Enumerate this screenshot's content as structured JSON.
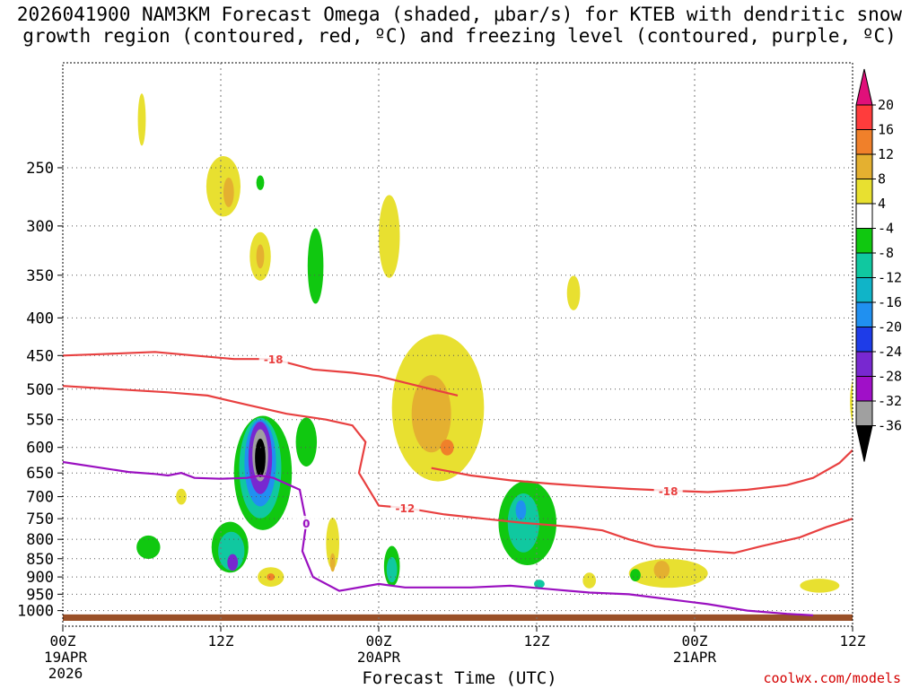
{
  "title_lines": [
    "2026041900 NAM3KM Forecast Omega (shaded, μbar/s) for KTEB with dendritic snow",
    "growth region (contoured, red, ºC) and freezing level (contoured, purple, ºC)"
  ],
  "xaxis_label": "Forecast Time (UTC)",
  "credit": "coolwx.com/models",
  "chart_data": {
    "type": "heatmap",
    "title": "2026041900 NAM3KM Forecast Omega (shaded, μbar/s) for KTEB with dendritic snow growth region (contoured, red, ºC) and freezing level (contoured, purple, ºC)",
    "xlabel": "Forecast Time (UTC)",
    "ylabel": "",
    "x_range_hours": [
      0,
      60
    ],
    "y_scale": "log-pressure (hPa), inverted",
    "y_range_hpa": [
      1050,
      180
    ],
    "x_ticks": [
      {
        "hour": 0,
        "label": "00Z",
        "sub": [
          "19APR",
          "2026"
        ]
      },
      {
        "hour": 12,
        "label": "12Z",
        "sub": []
      },
      {
        "hour": 24,
        "label": "00Z",
        "sub": [
          "20APR"
        ]
      },
      {
        "hour": 36,
        "label": "12Z",
        "sub": []
      },
      {
        "hour": 48,
        "label": "00Z",
        "sub": [
          "21APR"
        ]
      },
      {
        "hour": 60,
        "label": "12Z",
        "sub": []
      }
    ],
    "y_ticks": [
      {
        "p": 250,
        "label": "250"
      },
      {
        "p": 300,
        "label": "300"
      },
      {
        "p": 350,
        "label": "350"
      },
      {
        "p": 400,
        "label": "400"
      },
      {
        "p": 450,
        "label": "450"
      },
      {
        "p": 500,
        "label": "500"
      },
      {
        "p": 550,
        "label": "550"
      },
      {
        "p": 600,
        "label": "600"
      },
      {
        "p": 650,
        "label": "650"
      },
      {
        "p": 700,
        "label": "700"
      },
      {
        "p": 750,
        "label": "750"
      },
      {
        "p": 800,
        "label": "800"
      },
      {
        "p": 850,
        "label": "850"
      },
      {
        "p": 900,
        "label": "900"
      },
      {
        "p": 950,
        "label": "950"
      },
      {
        "p": 1000,
        "label": "1000"
      }
    ],
    "grid": true,
    "colorbar": {
      "labels": [
        "20",
        "16",
        "12",
        "8",
        "4",
        "-4",
        "-8",
        "-12",
        "-16",
        "-20",
        "-24",
        "-28",
        "-32",
        "-36"
      ],
      "colors": [
        "#ff3c3c",
        "#f0802a",
        "#e4b030",
        "#e8e030",
        "#ffffff",
        "#10c810",
        "#10c8a0",
        "#10b4c8",
        "#2090f0",
        "#1e3ce8",
        "#7828d0",
        "#a010c8",
        "#a0a0a0"
      ],
      "top_arrow_color": "#e0107a",
      "bottom_arrow_color": "#000000"
    },
    "omega_regions": [
      {
        "level": "4",
        "color": "#e8e030",
        "h": 6.0,
        "p": 215,
        "dh": 0.3,
        "dp": 35
      },
      {
        "level": "4",
        "color": "#e8e030",
        "h": 12.2,
        "p": 265,
        "dh": 1.3,
        "dp": 50
      },
      {
        "level": "8",
        "color": "#e4b030",
        "h": 12.6,
        "p": 270,
        "dh": 0.4,
        "dp": 25
      },
      {
        "level": "4",
        "color": "#e8e030",
        "h": 15.0,
        "p": 330,
        "dh": 0.8,
        "dp": 50
      },
      {
        "level": "8",
        "color": "#e4b030",
        "h": 15.0,
        "p": 330,
        "dh": 0.3,
        "dp": 25
      },
      {
        "level": "-4",
        "color": "#10c810",
        "h": 15.0,
        "p": 262,
        "dh": 0.3,
        "dp": 12
      },
      {
        "level": "-4",
        "color": "#10c810",
        "h": 19.2,
        "p": 340,
        "dh": 0.6,
        "dp": 80
      },
      {
        "level": "4",
        "color": "#e8e030",
        "h": 24.8,
        "p": 310,
        "dh": 0.8,
        "dp": 80
      },
      {
        "level": "4",
        "color": "#e8e030",
        "h": 28.5,
        "p": 530,
        "dh": 3.5,
        "dp": 240
      },
      {
        "level": "8",
        "color": "#e4b030",
        "h": 28.0,
        "p": 540,
        "dh": 1.5,
        "dp": 130
      },
      {
        "level": "12",
        "color": "#f0802a",
        "h": 29.2,
        "p": 600,
        "dh": 0.5,
        "dp": 30
      },
      {
        "level": "4",
        "color": "#e8e030",
        "h": 38.8,
        "p": 370,
        "dh": 0.5,
        "dp": 40
      },
      {
        "level": "4",
        "color": "#e8e030",
        "h": 61.0,
        "p": 520,
        "dh": 1.2,
        "dp": 130
      },
      {
        "level": "-4",
        "color": "#10c810",
        "h": 15.2,
        "p": 650,
        "dh": 2.2,
        "dp": 230
      },
      {
        "level": "-8",
        "color": "#10c8a0",
        "h": 15.0,
        "p": 640,
        "dh": 1.6,
        "dp": 200
      },
      {
        "level": "-16",
        "color": "#2090f0",
        "h": 15.0,
        "p": 630,
        "dh": 1.2,
        "dp": 170
      },
      {
        "level": "-24",
        "color": "#7828d0",
        "h": 15.0,
        "p": 620,
        "dh": 0.9,
        "dp": 140
      },
      {
        "level": "-32",
        "color": "#a0a0a0",
        "h": 15.0,
        "p": 615,
        "dh": 0.6,
        "dp": 100
      },
      {
        "level": "-36",
        "color": "#000000",
        "h": 15.0,
        "p": 620,
        "dh": 0.4,
        "dp": 75
      },
      {
        "level": "-4",
        "color": "#10c810",
        "h": 18.5,
        "p": 590,
        "dh": 0.8,
        "dp": 90
      },
      {
        "level": "-4",
        "color": "#10c810",
        "h": 12.7,
        "p": 820,
        "dh": 1.4,
        "dp": 130
      },
      {
        "level": "-8",
        "color": "#10c8a0",
        "h": 12.8,
        "p": 830,
        "dh": 1.0,
        "dp": 100
      },
      {
        "level": "-24",
        "color": "#7828d0",
        "h": 12.9,
        "p": 860,
        "dh": 0.4,
        "dp": 45
      },
      {
        "level": "-4",
        "color": "#10c810",
        "h": 6.5,
        "p": 820,
        "dh": 0.9,
        "dp": 60
      },
      {
        "level": "-4",
        "color": "#10c810",
        "h": 25.0,
        "p": 870,
        "dh": 0.6,
        "dp": 110
      },
      {
        "level": "-8",
        "color": "#10c8a0",
        "h": 25.0,
        "p": 880,
        "dh": 0.4,
        "dp": 70
      },
      {
        "level": "-4",
        "color": "#10c810",
        "h": 35.3,
        "p": 760,
        "dh": 2.2,
        "dp": 200
      },
      {
        "level": "-8",
        "color": "#10c8a0",
        "h": 35.0,
        "p": 760,
        "dh": 1.2,
        "dp": 140
      },
      {
        "level": "-16",
        "color": "#2090f0",
        "h": 34.8,
        "p": 730,
        "dh": 0.4,
        "dp": 45
      },
      {
        "level": "-8",
        "color": "#10c8a0",
        "h": 36.2,
        "p": 920,
        "dh": 0.4,
        "dp": 25
      },
      {
        "level": "4",
        "color": "#e8e030",
        "h": 15.8,
        "p": 900,
        "dh": 1.0,
        "dp": 55
      },
      {
        "level": "12",
        "color": "#f0802a",
        "h": 15.8,
        "p": 900,
        "dh": 0.3,
        "dp": 20
      },
      {
        "level": "4",
        "color": "#e8e030",
        "h": 20.5,
        "p": 810,
        "dh": 0.5,
        "dp": 130
      },
      {
        "level": "8",
        "color": "#e4b030",
        "h": 20.5,
        "p": 860,
        "dh": 0.2,
        "dp": 50
      },
      {
        "level": "4",
        "color": "#e8e030",
        "h": 40.0,
        "p": 910,
        "dh": 0.5,
        "dp": 45
      },
      {
        "level": "4",
        "color": "#e8e030",
        "h": 46.0,
        "p": 890,
        "dh": 3.0,
        "dp": 80
      },
      {
        "level": "8",
        "color": "#e4b030",
        "h": 45.5,
        "p": 880,
        "dh": 0.6,
        "dp": 50
      },
      {
        "level": "4",
        "color": "#e8e030",
        "h": 57.5,
        "p": 925,
        "dh": 1.5,
        "dp": 40
      },
      {
        "level": "-4",
        "color": "#10c810",
        "h": 43.5,
        "p": 895,
        "dh": 0.4,
        "dp": 35
      },
      {
        "level": "4",
        "color": "#e8e030",
        "h": 9.0,
        "p": 700,
        "dh": 0.4,
        "dp": 35
      }
    ],
    "series": [
      {
        "name": "-18",
        "color": "#e84040",
        "points": [
          [
            0,
            450
          ],
          [
            3,
            448
          ],
          [
            7,
            445
          ],
          [
            10,
            450
          ],
          [
            13,
            455
          ],
          [
            16,
            455
          ],
          [
            19,
            470
          ],
          [
            22,
            475
          ],
          [
            24,
            480
          ],
          [
            26,
            490
          ],
          [
            28,
            500
          ],
          [
            30,
            510
          ]
        ]
      },
      {
        "name": "-12",
        "color": "#e84040",
        "points": [
          [
            0,
            495
          ],
          [
            4,
            500
          ],
          [
            8,
            505
          ],
          [
            11,
            510
          ],
          [
            14,
            525
          ],
          [
            17,
            540
          ],
          [
            20,
            550
          ],
          [
            22,
            560
          ],
          [
            23,
            590
          ],
          [
            22.5,
            650
          ],
          [
            24,
            720
          ],
          [
            26,
            725
          ],
          [
            29,
            740
          ],
          [
            32,
            750
          ],
          [
            35,
            760
          ],
          [
            37,
            765
          ],
          [
            39,
            770
          ],
          [
            41,
            778
          ],
          [
            43,
            800
          ],
          [
            45,
            818
          ],
          [
            47,
            825
          ],
          [
            49,
            830
          ],
          [
            51,
            835
          ],
          [
            53,
            818
          ],
          [
            56,
            795
          ],
          [
            58,
            770
          ],
          [
            60,
            750
          ]
        ]
      },
      {
        "name": "-18",
        "color": "#e84040",
        "points": [
          [
            28,
            640
          ],
          [
            31,
            655
          ],
          [
            34,
            665
          ],
          [
            37,
            672
          ],
          [
            40,
            678
          ],
          [
            43,
            683
          ],
          [
            46,
            687
          ],
          [
            49,
            690
          ],
          [
            52,
            685
          ],
          [
            55,
            675
          ],
          [
            57,
            660
          ],
          [
            59,
            630
          ],
          [
            60,
            605
          ]
        ]
      },
      {
        "name": "0",
        "color": "#9a10c0",
        "points": [
          [
            0,
            628
          ],
          [
            3,
            640
          ],
          [
            5,
            648
          ],
          [
            7,
            652
          ],
          [
            8,
            655
          ],
          [
            9,
            650
          ],
          [
            10,
            660
          ],
          [
            12,
            662
          ],
          [
            14,
            660
          ],
          [
            15,
            655
          ],
          [
            16,
            660
          ],
          [
            18,
            685
          ],
          [
            18.5,
            760
          ],
          [
            18.2,
            830
          ],
          [
            19,
            900
          ],
          [
            21,
            940
          ],
          [
            24,
            920
          ],
          [
            26,
            930
          ],
          [
            28,
            930
          ],
          [
            31,
            930
          ],
          [
            34,
            925
          ],
          [
            37,
            935
          ],
          [
            40,
            945
          ],
          [
            43,
            950
          ],
          [
            46,
            965
          ],
          [
            49,
            980
          ],
          [
            52,
            1000
          ],
          [
            55,
            1010
          ],
          [
            57,
            1015
          ]
        ]
      }
    ],
    "terrain": {
      "color": "#9a5028",
      "top_hpa": 1012
    }
  }
}
